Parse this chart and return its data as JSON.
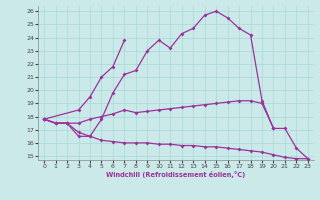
{
  "xlabel": "Windchill (Refroidissement éolien,°C)",
  "xlim": [
    -0.5,
    23.5
  ],
  "ylim": [
    14.7,
    26.4
  ],
  "xticks": [
    0,
    1,
    2,
    3,
    4,
    5,
    6,
    7,
    8,
    9,
    10,
    11,
    12,
    13,
    14,
    15,
    16,
    17,
    18,
    19,
    20,
    21,
    22,
    23
  ],
  "yticks": [
    15,
    16,
    17,
    18,
    19,
    20,
    21,
    22,
    23,
    24,
    25,
    26
  ],
  "bg_color": "#cce9e9",
  "line_color": "#993399",
  "grid_color": "#a8d8d8",
  "curves": [
    {
      "x": [
        0,
        1,
        2,
        3,
        4,
        5,
        6,
        7,
        8,
        9,
        10,
        11,
        12,
        13,
        14,
        15,
        16,
        17,
        18,
        19,
        20,
        21,
        22,
        23
      ],
      "y": [
        17.8,
        17.5,
        17.5,
        17.5,
        17.8,
        18.0,
        18.2,
        18.5,
        18.3,
        18.4,
        18.5,
        18.6,
        18.7,
        18.8,
        18.9,
        19.0,
        19.1,
        19.2,
        19.2,
        19.0,
        17.1,
        17.1,
        15.6,
        14.8
      ]
    },
    {
      "x": [
        0,
        1,
        2,
        3,
        4,
        5,
        6,
        7,
        8,
        9,
        10,
        11,
        12,
        13,
        14,
        15,
        16,
        17,
        18,
        19,
        20
      ],
      "y": [
        17.8,
        17.5,
        17.5,
        16.5,
        16.5,
        17.8,
        19.8,
        21.2,
        21.5,
        23.0,
        23.8,
        23.2,
        24.3,
        24.7,
        25.7,
        26.0,
        25.5,
        24.7,
        24.2,
        19.2,
        17.1
      ]
    },
    {
      "x": [
        0,
        3,
        4,
        5,
        6,
        7
      ],
      "y": [
        17.8,
        18.5,
        19.5,
        21.0,
        21.8,
        23.8
      ]
    },
    {
      "x": [
        0,
        1,
        2,
        3,
        4,
        5,
        6,
        7,
        8,
        9,
        10,
        11,
        12,
        13,
        14,
        15,
        16,
        17,
        18,
        19,
        20,
        21,
        22,
        23
      ],
      "y": [
        17.8,
        17.5,
        17.5,
        16.8,
        16.5,
        16.2,
        16.1,
        16.0,
        16.0,
        16.0,
        15.9,
        15.9,
        15.8,
        15.8,
        15.7,
        15.7,
        15.6,
        15.5,
        15.4,
        15.3,
        15.1,
        14.9,
        14.8,
        14.8
      ]
    }
  ]
}
